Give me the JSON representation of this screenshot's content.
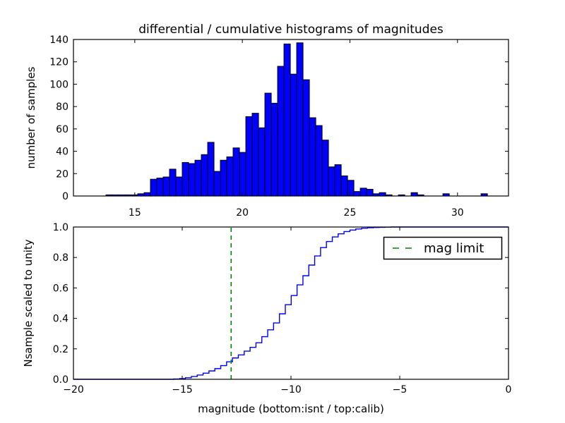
{
  "figure": {
    "title": "differential / cumulative histograms of magnitudes",
    "background": "#ffffff"
  },
  "colors": {
    "bar_fill": "#0000ff",
    "bar_edge": "#000000",
    "curve": "#0000ff",
    "mag_limit_line": "#008000",
    "axis": "#000000",
    "text": "#000000"
  },
  "chart_data": [
    {
      "type": "bar",
      "role": "differential-histogram",
      "title": "differential / cumulative histograms of magnitudes",
      "xlabel": "",
      "ylabel": "number of samples",
      "xlim": [
        12.15,
        32.37
      ],
      "ylim": [
        0,
        140
      ],
      "xticks": [
        15,
        20,
        25,
        30
      ],
      "yticks": [
        0,
        20,
        40,
        60,
        80,
        100,
        120,
        140
      ],
      "grid": false,
      "bar_color": "#0000ff",
      "bar_edge_color": "#000000",
      "bin_start": 13.66,
      "bin_width": 0.2955,
      "counts": [
        1,
        1,
        1,
        1,
        1,
        2,
        3,
        15,
        16,
        17,
        24,
        17,
        30,
        29,
        32,
        37,
        48,
        22,
        32,
        35,
        43,
        39,
        71,
        74,
        61,
        92,
        83,
        116,
        136,
        109,
        137,
        104,
        70,
        63,
        50,
        26,
        28,
        18,
        14,
        4,
        7,
        6,
        2,
        3,
        1,
        0,
        1,
        0,
        3,
        1,
        0,
        0,
        0,
        2,
        0,
        0,
        0,
        0,
        0,
        2
      ]
    },
    {
      "type": "line",
      "role": "cumulative-histogram",
      "line_style": "step",
      "line_color": "#0000ff",
      "xlabel": "magnitude (bottom:isnt / top:calib)",
      "ylabel": "Nsample scaled to unity",
      "xlim": [
        -20,
        0
      ],
      "ylim": [
        0.0,
        1.0
      ],
      "xticks": [
        -20,
        -15,
        -10,
        -5,
        0
      ],
      "xtick_labels": [
        "−20",
        "−15",
        "−10",
        "−5",
        "0"
      ],
      "yticks": [
        0.0,
        0.2,
        0.4,
        0.6,
        0.8,
        1.0
      ],
      "ytick_labels": [
        "0.0",
        "0.2",
        "0.4",
        "0.6",
        "0.8",
        "1.0"
      ],
      "grid": false,
      "x": [
        -20,
        -15.39,
        -15.12,
        -14.85,
        -14.58,
        -14.31,
        -14.04,
        -13.77,
        -13.5,
        -13.23,
        -12.96,
        -12.69,
        -12.42,
        -12.15,
        -11.88,
        -11.61,
        -11.34,
        -11.07,
        -10.8,
        -10.53,
        -10.26,
        -9.99,
        -9.72,
        -9.45,
        -9.18,
        -8.91,
        -8.64,
        -8.37,
        -8.1,
        -7.83,
        -7.56,
        -7.29,
        -7.02,
        -6.75,
        -6.48,
        -6.21,
        -5.94,
        -5.67,
        -5.4,
        0
      ],
      "y": [
        0,
        0.002,
        0.005,
        0.01,
        0.018,
        0.028,
        0.04,
        0.055,
        0.07,
        0.09,
        0.115,
        0.14,
        0.16,
        0.185,
        0.21,
        0.24,
        0.28,
        0.325,
        0.37,
        0.43,
        0.49,
        0.55,
        0.62,
        0.68,
        0.75,
        0.81,
        0.865,
        0.905,
        0.935,
        0.955,
        0.97,
        0.98,
        0.987,
        0.992,
        0.995,
        0.997,
        0.998,
        0.999,
        1.0,
        1.0
      ],
      "mag_limit": {
        "x": -12.75,
        "color": "#008000",
        "linestyle": "dashed"
      },
      "legend": {
        "label": "mag limit",
        "position": "upper right"
      }
    }
  ]
}
